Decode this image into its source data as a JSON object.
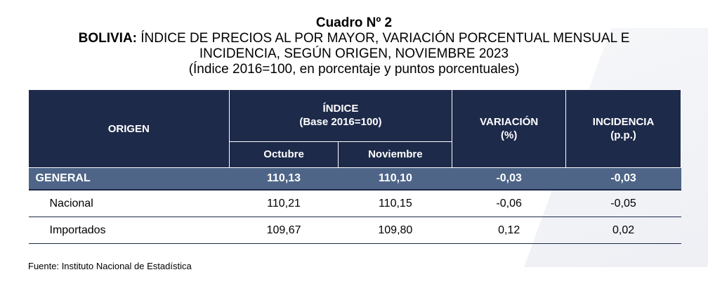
{
  "title": "Cuadro Nº 2",
  "subtitle_bold": "BOLIVIA:",
  "subtitle_line1": " ÍNDICE DE PRECIOS AL POR MAYOR, VARIACIÓN PORCENTUAL MENSUAL E",
  "subtitle_line2": "INCIDENCIA, SEGÚN ORIGEN, NOVIEMBRE 2023",
  "subtitle_line3": "(Índice 2016=100, en porcentaje y puntos porcentuales)",
  "headers": {
    "origen": "ORIGEN",
    "indice": "ÍNDICE",
    "indice_base": "(Base 2016=100)",
    "octubre": "Octubre",
    "noviembre": "Noviembre",
    "variacion": "VARIACIÓN",
    "variacion_unit": "(%)",
    "incidencia": "INCIDENCIA",
    "incidencia_unit": "(p.p.)"
  },
  "rows": [
    {
      "origen": "GENERAL",
      "octubre": "110,13",
      "noviembre": "110,10",
      "variacion": "-0,03",
      "incidencia": "-0,03"
    },
    {
      "origen": "Nacional",
      "octubre": "110,21",
      "noviembre": "110,15",
      "variacion": "-0,06",
      "incidencia": "-0,05"
    },
    {
      "origen": "Importados",
      "octubre": "109,67",
      "noviembre": "109,80",
      "variacion": "0,12",
      "incidencia": "0,02"
    }
  ],
  "source": "Fuente: Instituto Nacional de Estadística"
}
